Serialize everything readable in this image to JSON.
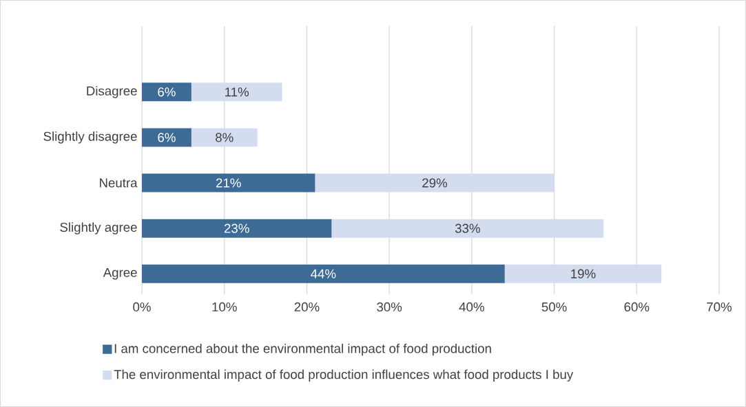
{
  "chart_data": {
    "type": "bar",
    "orientation": "horizontal",
    "stacked": true,
    "categories": [
      "Disagree",
      "Slightly disagree",
      "Neutra",
      "Slightly agree",
      "Agree"
    ],
    "series": [
      {
        "name": "I am concerned about the environmental impact of food production",
        "color": "#3d6b96",
        "values": [
          6,
          6,
          21,
          23,
          44
        ],
        "value_labels": [
          "6%",
          "6%",
          "21%",
          "23%",
          "44%"
        ]
      },
      {
        "name": "The environmental impact of food production influences  what food products I buy",
        "color": "#d3ddef",
        "values": [
          11,
          8,
          29,
          33,
          19
        ],
        "value_labels": [
          "11%",
          "8%",
          "29%",
          "33%",
          "19%"
        ]
      }
    ],
    "xlim": [
      0,
      70
    ],
    "xticks": [
      {
        "value": 0,
        "label": "0%"
      },
      {
        "value": 10,
        "label": "10%"
      },
      {
        "value": 20,
        "label": "20%"
      },
      {
        "value": 30,
        "label": "30%"
      },
      {
        "value": 40,
        "label": "40%"
      },
      {
        "value": 50,
        "label": "50%"
      },
      {
        "value": 60,
        "label": "60%"
      },
      {
        "value": 70,
        "label": "70%"
      }
    ],
    "grid": "x",
    "legend": "bottom"
  }
}
